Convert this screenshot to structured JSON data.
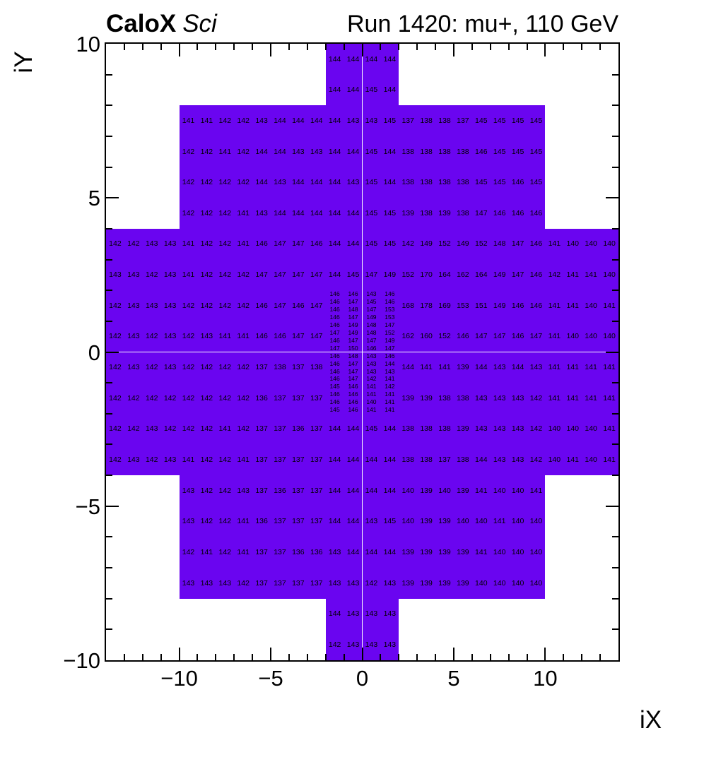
{
  "header": {
    "experiment": "CaloX",
    "detector": "Sci",
    "run_title": "Run 1420: mu+, 110 GeV"
  },
  "chart_data": {
    "type": "heatmap",
    "title": "Run 1420: mu+, 110 GeV",
    "xlabel": "iX",
    "ylabel": "iY",
    "xlim": [
      -14,
      14
    ],
    "ylim": [
      -10,
      10
    ],
    "grid": false,
    "x_tick_values": [
      -10,
      -5,
      0,
      5,
      10
    ],
    "x_tick_labels": [
      "−10",
      "−5",
      "0",
      "5",
      "10"
    ],
    "y_tick_values": [
      -10,
      -5,
      0,
      5,
      10
    ],
    "y_tick_labels": [
      "−10",
      "−5",
      "0",
      "5",
      "10"
    ],
    "cell_fill_color": "#6a05f0",
    "value_text_color": "#000000",
    "frame_color": "#000000",
    "blocks": [
      {
        "name": "top-cap",
        "x0": -2,
        "y_top": 10,
        "cell_w": 1,
        "cell_h": 1,
        "rows": [
          [
            144,
            144,
            144,
            144
          ],
          [
            144,
            144,
            145,
            144
          ]
        ]
      },
      {
        "name": "upper-band",
        "x0": -10,
        "y_top": 8,
        "cell_w": 1,
        "cell_h": 1,
        "rows": [
          [
            141,
            141,
            142,
            142,
            143,
            144,
            144,
            144,
            144,
            143,
            143,
            145,
            137,
            138,
            138,
            137,
            145,
            145,
            145,
            145
          ],
          [
            142,
            142,
            141,
            142,
            144,
            144,
            143,
            143,
            144,
            144,
            145,
            144,
            138,
            138,
            138,
            138,
            146,
            145,
            145,
            145
          ],
          [
            142,
            142,
            142,
            142,
            144,
            143,
            144,
            144,
            144,
            143,
            145,
            144,
            138,
            138,
            138,
            138,
            145,
            145,
            146,
            145
          ],
          [
            142,
            142,
            142,
            141,
            143,
            144,
            144,
            144,
            144,
            144,
            145,
            145,
            139,
            138,
            139,
            138,
            147,
            146,
            146,
            146
          ]
        ]
      },
      {
        "name": "mid-upper-band",
        "x0": -14,
        "y_top": 4,
        "cell_w": 1,
        "cell_h": 1,
        "rows": [
          [
            142,
            142,
            143,
            143,
            141,
            142,
            142,
            141,
            146,
            147,
            147,
            146,
            144,
            144,
            145,
            145,
            142,
            149,
            152,
            149,
            152,
            148,
            147,
            146,
            141,
            140,
            140,
            140
          ],
          [
            143,
            143,
            142,
            143,
            141,
            142,
            142,
            142,
            147,
            147,
            147,
            147,
            144,
            145,
            147,
            149,
            152,
            170,
            164,
            162,
            164,
            149,
            147,
            146,
            142,
            141,
            141,
            140
          ]
        ]
      },
      {
        "name": "center-left",
        "x0": -14,
        "y_top": 2,
        "cell_w": 1,
        "cell_h": 1,
        "rows": [
          [
            142,
            143,
            143,
            143,
            142,
            142,
            142,
            142,
            146,
            147,
            146,
            147
          ],
          [
            142,
            143,
            142,
            143,
            142,
            143,
            141,
            141,
            146,
            146,
            147,
            147
          ],
          [
            142,
            143,
            142,
            143,
            142,
            142,
            142,
            142,
            137,
            138,
            137,
            138
          ],
          [
            142,
            142,
            142,
            142,
            142,
            142,
            142,
            142,
            136,
            137,
            137,
            137
          ]
        ]
      },
      {
        "name": "center-fine",
        "x0": -2,
        "y_top": 2,
        "cell_w": 1,
        "cell_h": 0.25,
        "rows": [
          [
            146,
            146,
            143,
            146
          ],
          [
            146,
            147,
            145,
            146
          ],
          [
            146,
            148,
            147,
            153
          ],
          [
            146,
            147,
            149,
            153
          ],
          [
            146,
            149,
            148,
            147
          ],
          [
            147,
            149,
            148,
            152
          ],
          [
            146,
            147,
            147,
            149
          ],
          [
            147,
            150,
            146,
            147
          ],
          [
            146,
            148,
            143,
            146
          ],
          [
            146,
            147,
            143,
            144
          ],
          [
            146,
            147,
            143,
            143
          ],
          [
            146,
            147,
            142,
            141
          ],
          [
            145,
            146,
            141,
            142
          ],
          [
            146,
            146,
            141,
            141
          ],
          [
            146,
            146,
            140,
            141
          ],
          [
            145,
            146,
            141,
            141
          ]
        ]
      },
      {
        "name": "center-right",
        "x0": 2,
        "y_top": 2,
        "cell_w": 1,
        "cell_h": 1,
        "rows": [
          [
            168,
            178,
            169,
            153,
            151,
            149,
            146,
            146,
            141,
            141,
            140,
            141
          ],
          [
            162,
            160,
            152,
            146,
            147,
            147,
            146,
            147,
            141,
            140,
            140,
            140
          ],
          [
            144,
            141,
            141,
            139,
            144,
            143,
            144,
            143,
            141,
            141,
            141,
            141
          ],
          [
            139,
            139,
            138,
            138,
            143,
            143,
            143,
            142,
            141,
            141,
            141,
            141
          ]
        ]
      },
      {
        "name": "mid-lower-band",
        "x0": -14,
        "y_top": -2,
        "cell_w": 1,
        "cell_h": 1,
        "rows": [
          [
            142,
            142,
            143,
            142,
            142,
            142,
            141,
            142,
            137,
            137,
            136,
            137,
            144,
            144,
            145,
            144,
            138,
            138,
            138,
            139,
            143,
            143,
            143,
            142,
            140,
            140,
            140,
            141
          ],
          [
            142,
            143,
            142,
            143,
            141,
            142,
            142,
            141,
            137,
            137,
            137,
            137,
            144,
            144,
            144,
            144,
            138,
            138,
            137,
            138,
            144,
            143,
            143,
            142,
            140,
            141,
            140,
            141
          ]
        ]
      },
      {
        "name": "lower-band",
        "x0": -10,
        "y_top": -4,
        "cell_w": 1,
        "cell_h": 1,
        "rows": [
          [
            143,
            142,
            142,
            143,
            137,
            136,
            137,
            137,
            144,
            144,
            144,
            144,
            140,
            139,
            140,
            139,
            141,
            140,
            140,
            141
          ],
          [
            143,
            142,
            142,
            141,
            136,
            137,
            137,
            137,
            144,
            144,
            143,
            145,
            140,
            139,
            139,
            140,
            140,
            141,
            140,
            140
          ],
          [
            142,
            141,
            142,
            141,
            137,
            137,
            136,
            136,
            143,
            144,
            144,
            144,
            139,
            139,
            139,
            139,
            141,
            140,
            140,
            140
          ],
          [
            143,
            143,
            143,
            142,
            137,
            137,
            137,
            137,
            143,
            143,
            142,
            143,
            139,
            139,
            139,
            139,
            140,
            140,
            140,
            140
          ]
        ]
      },
      {
        "name": "bottom-cap",
        "x0": -2,
        "y_top": -8,
        "cell_w": 1,
        "cell_h": 1,
        "rows": [
          [
            144,
            143,
            143,
            143
          ],
          [
            142,
            143,
            143,
            143
          ]
        ]
      }
    ]
  }
}
